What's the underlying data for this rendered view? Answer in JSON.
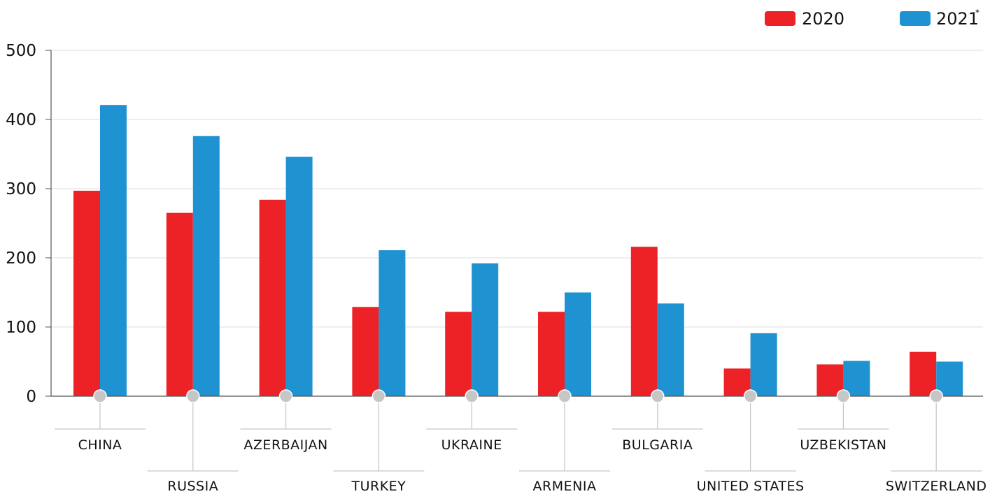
{
  "chart_data": {
    "type": "bar",
    "categories": [
      "CHINA",
      "RUSSIA",
      "AZERBAIJAN",
      "TURKEY",
      "UKRAINE",
      "ARMENIA",
      "BULGARIA",
      "UNITED STATES",
      "UZBEKISTAN",
      "SWITZERLAND"
    ],
    "series": [
      {
        "name": "2020",
        "color": "#ec2227",
        "values": [
          297,
          265,
          284,
          129,
          122,
          122,
          216,
          40,
          46,
          64
        ]
      },
      {
        "name": "2021",
        "name_suffix": "*",
        "color": "#1f93d2",
        "values": [
          421,
          376,
          346,
          211,
          192,
          150,
          134,
          91,
          51,
          50
        ]
      }
    ],
    "ylim": [
      0,
      500
    ],
    "yticks": [
      "0",
      "100",
      "200",
      "300",
      "400",
      "500"
    ],
    "grid": true,
    "legend_position": "top-right",
    "label_layout": "staggered"
  }
}
